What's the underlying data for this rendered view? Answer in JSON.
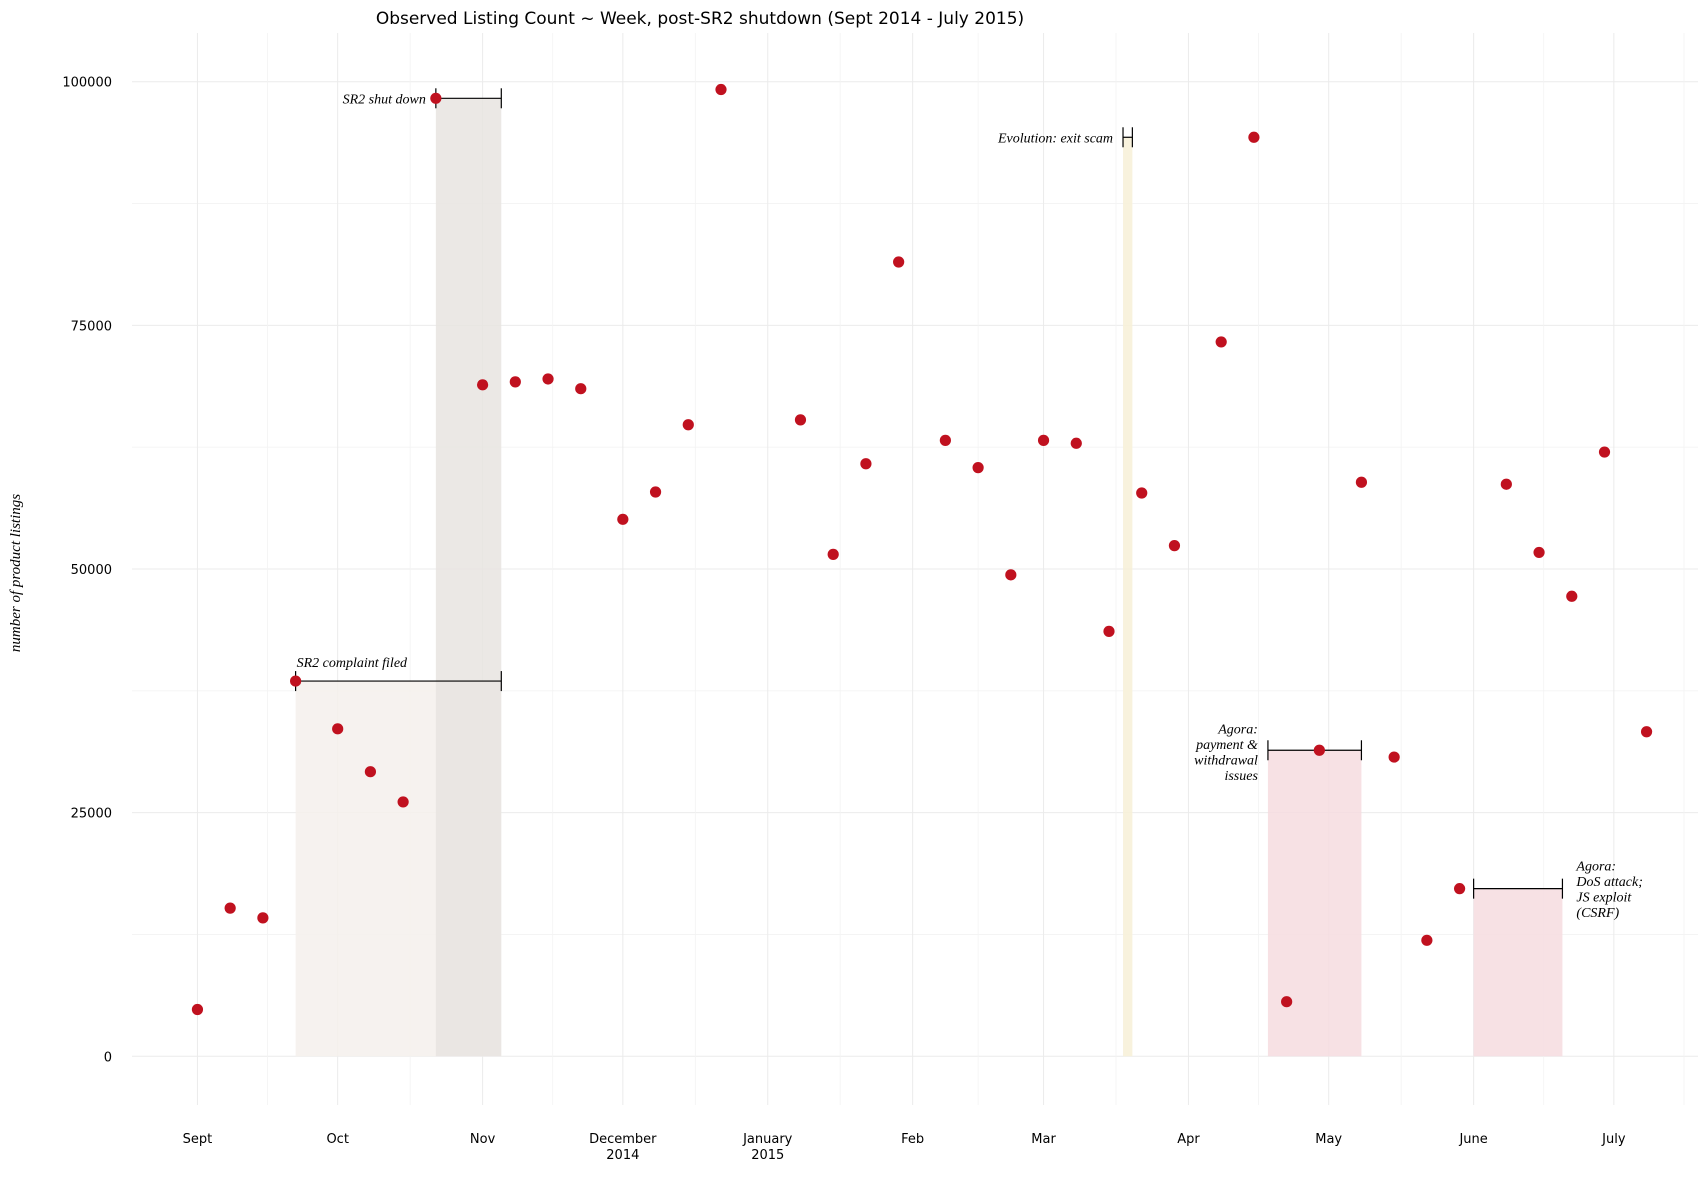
{
  "chart_data": {
    "type": "scatter",
    "title": "Observed Listing Count ~ Week, post-SR2 shutdown (Sept 2014 - July 2015)",
    "ylabel": "number of product listings",
    "xlabel": "",
    "ylim": [
      -5000,
      105000
    ],
    "xlim": [
      "2014-08-18",
      "2015-07-19"
    ],
    "grid": true,
    "point_color": "#c0111f",
    "y_ticks": [
      {
        "value": 0,
        "label": "0"
      },
      {
        "value": 25000,
        "label": "25000"
      },
      {
        "value": 50000,
        "label": "50000"
      },
      {
        "value": 75000,
        "label": "75000"
      },
      {
        "value": 100000,
        "label": "100000"
      }
    ],
    "x_ticks": [
      {
        "date": "2014-09-01",
        "label": "Sept",
        "label2": ""
      },
      {
        "date": "2014-10-01",
        "label": "Oct",
        "label2": ""
      },
      {
        "date": "2014-11-01",
        "label": "Nov",
        "label2": ""
      },
      {
        "date": "2014-12-01",
        "label": "December",
        "label2": "2014"
      },
      {
        "date": "2015-01-01",
        "label": "January",
        "label2": "2015"
      },
      {
        "date": "2015-02-01",
        "label": "Feb",
        "label2": ""
      },
      {
        "date": "2015-03-01",
        "label": "Mar",
        "label2": ""
      },
      {
        "date": "2015-04-01",
        "label": "Apr",
        "label2": ""
      },
      {
        "date": "2015-05-01",
        "label": "May",
        "label2": ""
      },
      {
        "date": "2015-06-01",
        "label": "June",
        "label2": ""
      },
      {
        "date": "2015-07-01",
        "label": "July",
        "label2": ""
      }
    ],
    "points": [
      {
        "x": "2014-09-01",
        "y": 4800
      },
      {
        "x": "2014-09-08",
        "y": 15200
      },
      {
        "x": "2014-09-15",
        "y": 14200
      },
      {
        "x": "2014-09-22",
        "y": 38500
      },
      {
        "x": "2014-10-01",
        "y": 33600
      },
      {
        "x": "2014-10-08",
        "y": 29200
      },
      {
        "x": "2014-10-15",
        "y": 26100
      },
      {
        "x": "2014-10-22",
        "y": 98300
      },
      {
        "x": "2014-11-01",
        "y": 68900
      },
      {
        "x": "2014-11-08",
        "y": 69200
      },
      {
        "x": "2014-11-15",
        "y": 69500
      },
      {
        "x": "2014-11-22",
        "y": 68500
      },
      {
        "x": "2014-12-01",
        "y": 55100
      },
      {
        "x": "2014-12-08",
        "y": 57900
      },
      {
        "x": "2014-12-15",
        "y": 64800
      },
      {
        "x": "2014-12-22",
        "y": 99200
      },
      {
        "x": "2015-01-08",
        "y": 65300
      },
      {
        "x": "2015-01-15",
        "y": 51500
      },
      {
        "x": "2015-01-22",
        "y": 60800
      },
      {
        "x": "2015-01-29",
        "y": 81500
      },
      {
        "x": "2015-02-08",
        "y": 63200
      },
      {
        "x": "2015-02-15",
        "y": 60400
      },
      {
        "x": "2015-02-22",
        "y": 49400
      },
      {
        "x": "2015-03-01",
        "y": 63200
      },
      {
        "x": "2015-03-08",
        "y": 62900
      },
      {
        "x": "2015-03-15",
        "y": 43600
      },
      {
        "x": "2015-03-22",
        "y": 57800
      },
      {
        "x": "2015-03-29",
        "y": 52400
      },
      {
        "x": "2015-04-08",
        "y": 73300
      },
      {
        "x": "2015-04-15",
        "y": 94300
      },
      {
        "x": "2015-04-22",
        "y": 5600
      },
      {
        "x": "2015-04-29",
        "y": 31400
      },
      {
        "x": "2015-05-08",
        "y": 58900
      },
      {
        "x": "2015-05-15",
        "y": 30700
      },
      {
        "x": "2015-05-22",
        "y": 11900
      },
      {
        "x": "2015-05-29",
        "y": 17200
      },
      {
        "x": "2015-06-08",
        "y": 58700
      },
      {
        "x": "2015-06-15",
        "y": 51700
      },
      {
        "x": "2015-06-22",
        "y": 47200
      },
      {
        "x": "2015-06-29",
        "y": 62000
      },
      {
        "x": "2015-07-08",
        "y": 33300
      }
    ],
    "annotations": [
      {
        "id": "sr2-complaint",
        "lines": [
          "SR2 complaint filed"
        ],
        "start": "2014-09-22",
        "end": "2014-11-05",
        "y": 38500,
        "color": "#f5f0ec",
        "label_side": "above"
      },
      {
        "id": "sr2-shutdown",
        "lines": [
          "SR2 shut down"
        ],
        "start": "2014-10-22",
        "end": "2014-11-05",
        "y": 98300,
        "color": "#e7e4e1",
        "label_side": "left"
      },
      {
        "id": "evolution",
        "lines": [
          "Evolution: exit scam"
        ],
        "start": "2015-03-18",
        "end": "2015-03-20",
        "y": 94300,
        "color": "#f7f0d7",
        "label_side": "left"
      },
      {
        "id": "agora-payment",
        "lines": [
          "Agora:",
          "payment &",
          "withdrawal",
          "issues"
        ],
        "start": "2015-04-18",
        "end": "2015-05-08",
        "y": 31400,
        "color": "#f6dcdf",
        "label_side": "left"
      },
      {
        "id": "agora-dos",
        "lines": [
          "Agora:",
          "DoS attack;",
          "JS exploit",
          "(CSRF)"
        ],
        "start": "2015-06-01",
        "end": "2015-06-20",
        "y": 17200,
        "color": "#f6dcdf",
        "label_side": "right"
      }
    ]
  }
}
